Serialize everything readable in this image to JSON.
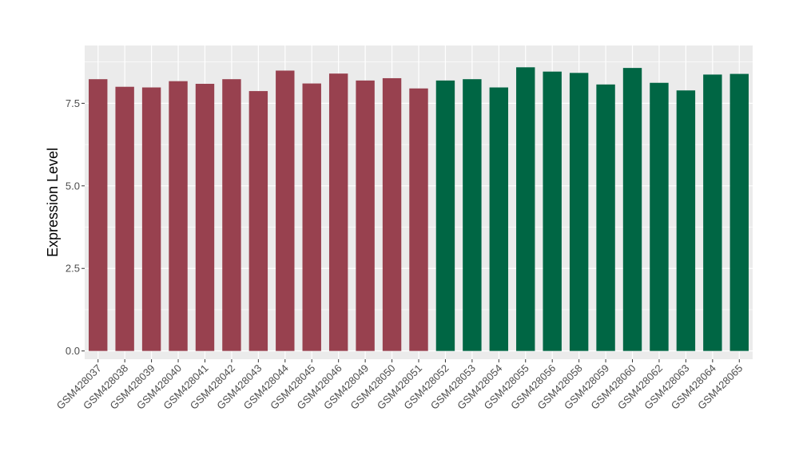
{
  "chart_data": {
    "type": "bar",
    "title": "",
    "xlabel": "",
    "ylabel": "Expression Level",
    "ylim": [
      -0.25,
      9.25
    ],
    "yticks": [
      0.0,
      2.5,
      5.0,
      7.5
    ],
    "ytick_labels": [
      "0.0",
      "2.5",
      "5.0",
      "7.5"
    ],
    "grid": true,
    "panel_background": "#EBEBEB",
    "group_colors": [
      "#98414F",
      "#006644"
    ],
    "categories": [
      "GSM428037",
      "GSM428038",
      "GSM428039",
      "GSM428040",
      "GSM428041",
      "GSM428042",
      "GSM428043",
      "GSM428044",
      "GSM428045",
      "GSM428046",
      "GSM428049",
      "GSM428050",
      "GSM428051",
      "GSM428052",
      "GSM428053",
      "GSM428054",
      "GSM428055",
      "GSM428056",
      "GSM428058",
      "GSM428059",
      "GSM428060",
      "GSM428062",
      "GSM428063",
      "GSM428064",
      "GSM428065"
    ],
    "values": [
      8.23,
      8.0,
      7.98,
      8.17,
      8.09,
      8.23,
      7.87,
      8.49,
      8.1,
      8.4,
      8.19,
      8.26,
      7.95,
      8.19,
      8.23,
      7.98,
      8.59,
      8.46,
      8.42,
      8.07,
      8.57,
      8.12,
      7.89,
      8.37,
      8.39
    ],
    "groups": [
      0,
      0,
      0,
      0,
      0,
      0,
      0,
      0,
      0,
      0,
      0,
      0,
      0,
      1,
      1,
      1,
      1,
      1,
      1,
      1,
      1,
      1,
      1,
      1,
      1
    ]
  }
}
